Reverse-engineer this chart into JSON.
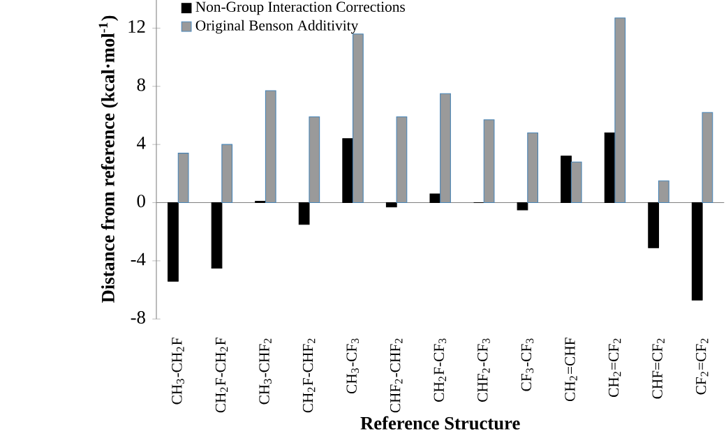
{
  "chart_data": {
    "type": "bar",
    "xlabel": "Reference Structure",
    "ylabel": "Distance from reference (kcal·mol$^{-1}$)",
    "categories": [
      "CH$_{3}$-CH$_{2}$F",
      "CH$_{2}$F-CH$_{2}$F",
      "CH$_{3}$-CHF$_{2}$",
      "CH$_{2}$F-CHF$_{2}$",
      "CH$_{3}$-CF$_{3}$",
      "CHF$_{2}$-CHF$_{2}$",
      "CH$_{2}$F-CF$_{3}$",
      "CHF$_{2}$-CF$_{3}$",
      "CF$_{3}$-CF$_{3}$",
      "CH$_{2}$=CHF",
      "CH$_{2}$=CF$_{2}$",
      "CHF=CF$_{2}$",
      "CF$_{2}$=CF$_{2}$"
    ],
    "series": [
      {
        "name": "Non-Group Interaction Corrections",
        "color": "#000000",
        "values": [
          -5.4,
          -4.5,
          0.1,
          -1.5,
          4.4,
          -0.3,
          0.6,
          0,
          -0.5,
          3.2,
          4.8,
          -3.1,
          -6.7
        ]
      },
      {
        "name": "Original Benson Additivity",
        "color": "#9a9a9a",
        "values": [
          3.4,
          4.0,
          7.7,
          5.9,
          11.6,
          5.9,
          7.5,
          5.7,
          4.8,
          2.8,
          12.7,
          1.5,
          6.2
        ]
      }
    ],
    "ylim": [
      -8,
      14
    ],
    "yticks": [
      -8,
      -4,
      0,
      4,
      8,
      12
    ],
    "legend": "top left"
  }
}
